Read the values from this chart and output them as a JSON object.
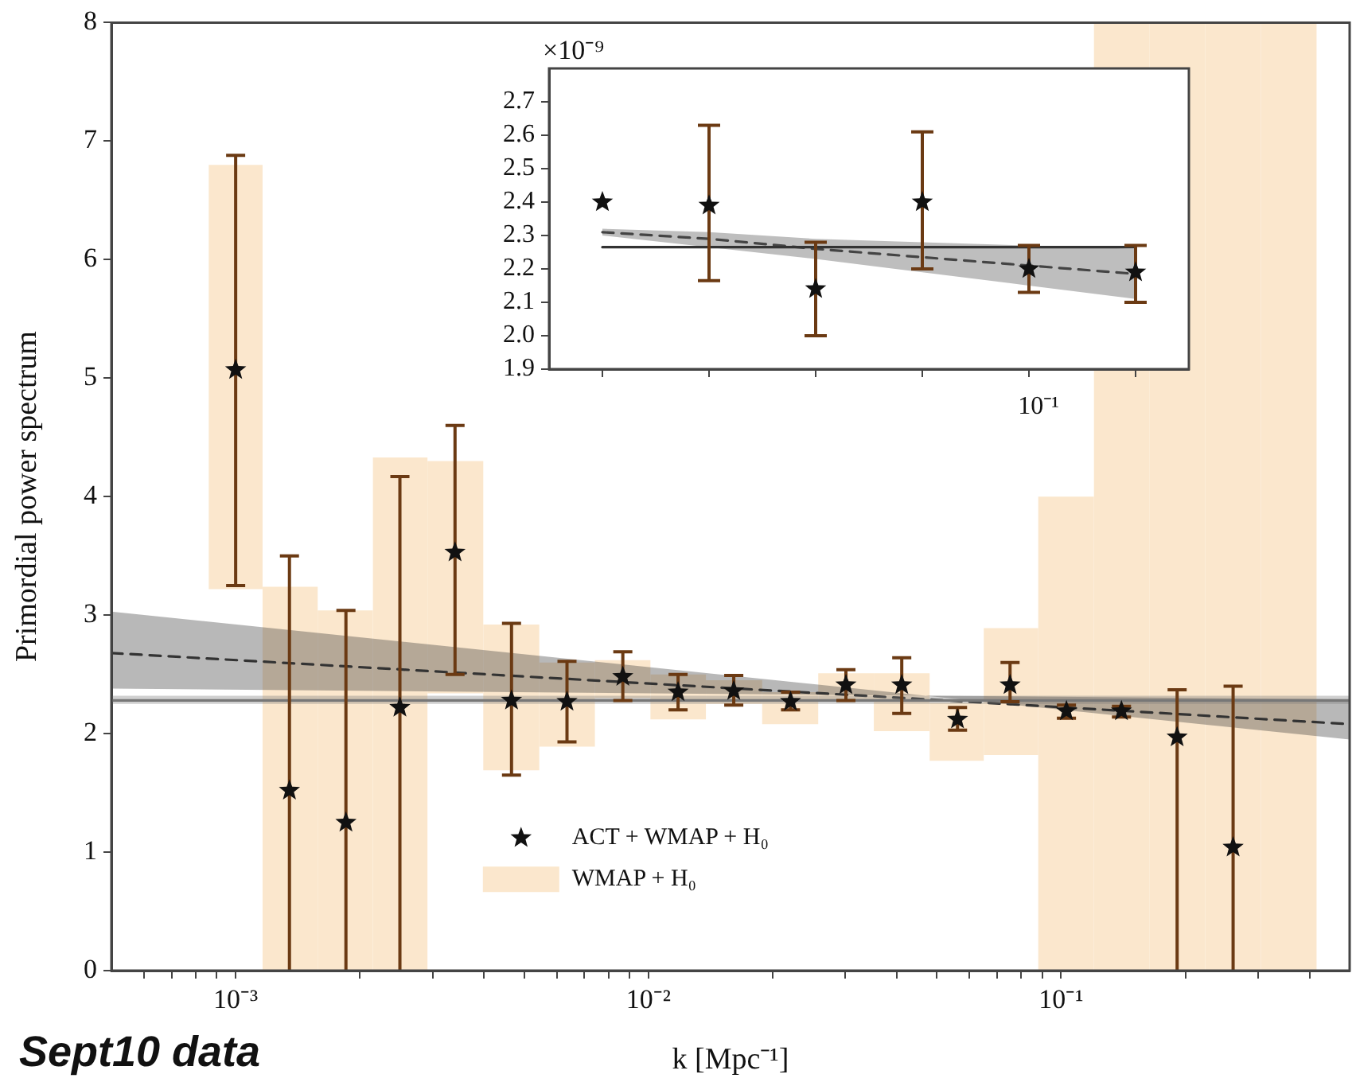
{
  "chart_data": [
    {
      "type": "scatter",
      "xlabel": "k [Mpc⁻¹]",
      "ylabel": "Primordial power spectrum",
      "log": "x",
      "legend": "bottom",
      "xlim": [
        0.0005,
        0.5
      ],
      "ylim": [
        0,
        8
      ],
      "xticks": [
        {
          "value": 0.0006,
          "label": null
        },
        {
          "value": 0.0007,
          "label": null
        },
        {
          "value": 0.0008,
          "label": null
        },
        {
          "value": 0.0009,
          "label": null
        },
        {
          "value": 0.001,
          "label": "10⁻³"
        },
        {
          "value": 0.002,
          "label": null
        },
        {
          "value": 0.003,
          "label": null
        },
        {
          "value": 0.004,
          "label": null
        },
        {
          "value": 0.005,
          "label": null
        },
        {
          "value": 0.006,
          "label": null
        },
        {
          "value": 0.007,
          "label": null
        },
        {
          "value": 0.008,
          "label": null
        },
        {
          "value": 0.009,
          "label": null
        },
        {
          "value": 0.01,
          "label": "10⁻²"
        },
        {
          "value": 0.02,
          "label": null
        },
        {
          "value": 0.03,
          "label": null
        },
        {
          "value": 0.04,
          "label": null
        },
        {
          "value": 0.05,
          "label": null
        },
        {
          "value": 0.06,
          "label": null
        },
        {
          "value": 0.07,
          "label": null
        },
        {
          "value": 0.08,
          "label": null
        },
        {
          "value": 0.09,
          "label": null
        },
        {
          "value": 0.1,
          "label": "10⁻¹"
        },
        {
          "value": 0.2,
          "label": null
        },
        {
          "value": 0.3,
          "label": null
        },
        {
          "value": 0.4,
          "label": null
        }
      ],
      "yticks": [
        0,
        1,
        2,
        3,
        4,
        5,
        6,
        7,
        8
      ],
      "annotations": [
        "Sept10 data"
      ],
      "series": [
        {
          "type": "bar",
          "name": "WMAP + H₀",
          "color": "#fbe7cd",
          "x": [
            0.001,
            0.00135,
            0.00185,
            0.0025,
            0.0034,
            0.00466,
            0.00635,
            0.00867,
            0.0118,
            0.0161,
            0.0221,
            0.0301,
            0.0411,
            0.0561,
            0.0752,
            0.103,
            0.14,
            0.191,
            0.261,
            0.356
          ],
          "base": [
            3.22,
            0,
            0,
            0,
            2.34,
            1.69,
            1.89,
            2.3,
            2.12,
            2.25,
            2.08,
            2.29,
            2.02,
            1.77,
            1.82,
            0,
            0,
            0,
            0,
            0
          ],
          "values": [
            3.58,
            3.24,
            3.04,
            4.33,
            1.96,
            1.23,
            0.71,
            0.32,
            0.38,
            0.2,
            0.27,
            0.22,
            0.49,
            0.49,
            1.07,
            4.0,
            8,
            8,
            8,
            8
          ]
        },
        {
          "type": "line",
          "color": "#777777",
          "x": [
            0.0005,
            0.5
          ],
          "values": [
            2.28,
            2.28
          ],
          "lower": [
            2.25,
            2.25
          ],
          "upper": [
            2.32,
            2.32
          ]
        },
        {
          "type": "line",
          "color": "#333333",
          "line_style": "dashed",
          "x": [
            0.0005,
            0.047,
            0.5
          ],
          "values": [
            2.68,
            2.29,
            2.08
          ],
          "lower": [
            2.38,
            2.32,
            1.95
          ],
          "upper": [
            3.03,
            2.32,
            2.29
          ]
        },
        {
          "type": "scatter",
          "name": "ACT + WMAP + H₀",
          "color": "#111111",
          "marker": "star",
          "x": [
            0.001,
            0.00135,
            0.00185,
            0.0025,
            0.0034,
            0.00466,
            0.00635,
            0.00867,
            0.0118,
            0.0161,
            0.0221,
            0.0301,
            0.0411,
            0.0561,
            0.0752,
            0.103,
            0.14,
            0.191,
            0.261
          ],
          "values": [
            5.07,
            1.52,
            1.25,
            2.22,
            3.53,
            2.28,
            2.27,
            2.48,
            2.35,
            2.36,
            2.27,
            2.41,
            2.41,
            2.12,
            2.41,
            2.19,
            2.19,
            1.97,
            1.04
          ],
          "errors": [
            [
              3.25,
              6.88
            ],
            [
              0,
              3.5
            ],
            [
              0,
              3.04
            ],
            [
              0,
              4.17
            ],
            [
              2.5,
              4.6
            ],
            [
              1.65,
              2.93
            ],
            [
              1.93,
              2.61
            ],
            [
              2.28,
              2.69
            ],
            [
              2.2,
              2.5
            ],
            [
              2.24,
              2.49
            ],
            [
              2.2,
              2.35
            ],
            [
              2.28,
              2.54
            ],
            [
              2.17,
              2.64
            ],
            [
              2.03,
              2.22
            ],
            [
              2.27,
              2.6
            ],
            [
              2.13,
              2.24
            ],
            [
              2.14,
              2.23
            ],
            [
              0,
              2.37
            ],
            [
              0,
              2.4
            ]
          ]
        }
      ]
    },
    {
      "type": "scatter",
      "categories": [
        null,
        null,
        null,
        null,
        null,
        null
      ],
      "ylim": [
        1.9,
        2.8
      ],
      "yticks": [
        1.9,
        {
          "value": 2,
          "label": "2.0"
        },
        2.1,
        2.2,
        2.3,
        2.4,
        2.5,
        2.6,
        2.7
      ],
      "annotations": [
        "×10⁻⁹",
        "10⁻¹"
      ],
      "series": [
        {
          "type": "line",
          "color": "#333333",
          "values": [
            2.265,
            2.265,
            2.265,
            2.265,
            2.265,
            2.265
          ]
        },
        {
          "type": "line",
          "color": "#444444",
          "line_style": "dashed",
          "values": [
            2.31,
            2.29,
            2.26,
            2.235,
            2.21,
            2.185
          ],
          "lower": [
            2.3,
            2.265,
            2.23,
            2.19,
            2.15,
            2.11
          ],
          "upper": [
            2.32,
            2.31,
            2.29,
            2.28,
            2.27,
            2.26
          ]
        },
        {
          "type": "scatter",
          "color": "#111111",
          "marker": "star",
          "values": [
            2.4,
            2.39,
            2.14,
            2.4,
            2.2,
            2.19
          ],
          "errors": [
            null,
            [
              2.165,
              2.63
            ],
            [
              2.0,
              2.28
            ],
            [
              2.2,
              2.61
            ],
            [
              2.13,
              2.27
            ],
            [
              2.1,
              2.27
            ]
          ]
        }
      ]
    }
  ]
}
